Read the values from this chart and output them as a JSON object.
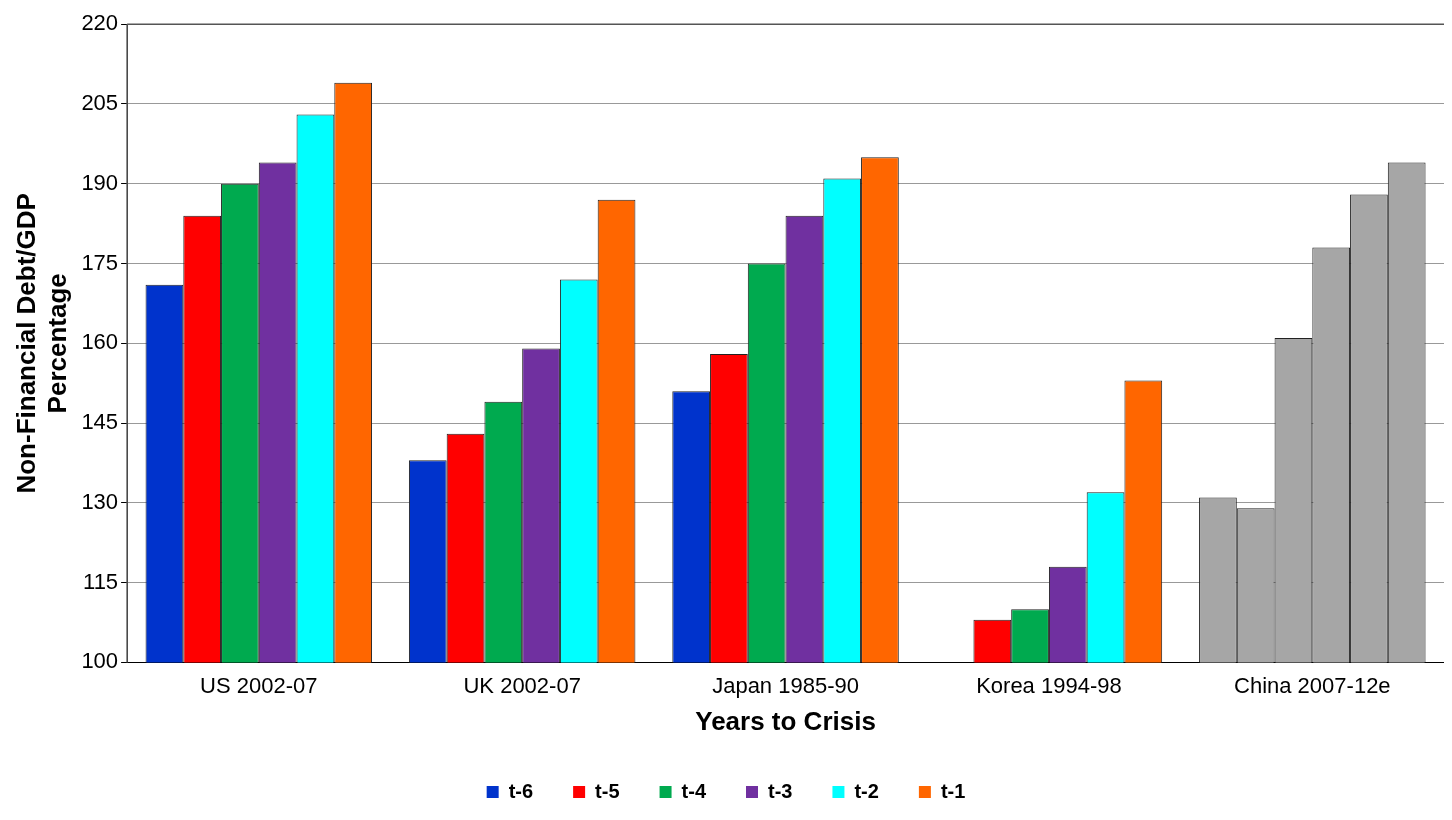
{
  "chart_data": {
    "type": "bar",
    "xlabel": "Years to Crisis",
    "ylabel": "Non-Financial Debt/GDP\nPercentage",
    "categories": [
      "US 2002-07",
      "UK 2002-07",
      "Japan 1985-90",
      "Korea 1994-98",
      "China 2007-12e"
    ],
    "series": [
      {
        "name": "t-6",
        "color": "#0033cc",
        "colors": [
          "#0033cc",
          "#0033cc",
          "#0033cc",
          "#0033cc",
          "#a6a6a6"
        ],
        "values": [
          171,
          138,
          151,
          null,
          131
        ]
      },
      {
        "name": "t-5",
        "color": "#ff0000",
        "colors": [
          "#ff0000",
          "#ff0000",
          "#ff0000",
          "#ff0000",
          "#a6a6a6"
        ],
        "values": [
          184,
          143,
          158,
          108,
          129
        ]
      },
      {
        "name": "t-4",
        "color": "#00aa4f",
        "colors": [
          "#00aa4f",
          "#00aa4f",
          "#00aa4f",
          "#00aa4f",
          "#a6a6a6"
        ],
        "values": [
          190,
          149,
          175,
          110,
          161
        ]
      },
      {
        "name": "t-3",
        "color": "#7030a0",
        "colors": [
          "#7030a0",
          "#7030a0",
          "#7030a0",
          "#7030a0",
          "#a6a6a6"
        ],
        "values": [
          194,
          159,
          184,
          118,
          178
        ]
      },
      {
        "name": "t-2",
        "color": "#00ffff",
        "colors": [
          "#00ffff",
          "#00ffff",
          "#00ffff",
          "#00ffff",
          "#a6a6a6"
        ],
        "values": [
          203,
          172,
          191,
          132,
          188
        ]
      },
      {
        "name": "t-1",
        "color": "#ff6600",
        "colors": [
          "#ff6600",
          "#ff6600",
          "#ff6600",
          "#ff6600",
          "#a6a6a6"
        ],
        "values": [
          209,
          187,
          195,
          153,
          194
        ]
      }
    ],
    "ylim": [
      100,
      220
    ],
    "yticks": [
      100,
      115,
      130,
      145,
      160,
      175,
      190,
      205,
      220
    ],
    "grid": "y",
    "legend": "bottom"
  }
}
